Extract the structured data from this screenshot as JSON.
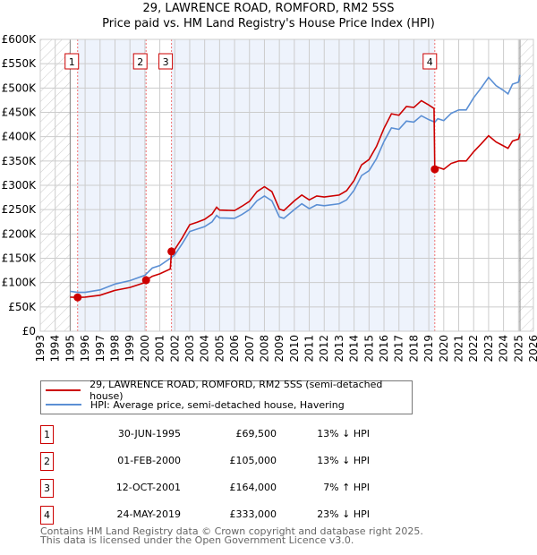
{
  "title": "29, LAWRENCE ROAD, ROMFORD, RM2 5SS",
  "subtitle": "Price paid vs. HM Land Registry's House Price Index (HPI)",
  "chart_data": {
    "type": "line",
    "xlim": [
      1993,
      2026
    ],
    "ylim": [
      0,
      600000
    ],
    "yticks": [
      "£0",
      "£50K",
      "£100K",
      "£150K",
      "£200K",
      "£250K",
      "£300K",
      "£350K",
      "£400K",
      "£450K",
      "£500K",
      "£550K",
      "£600K"
    ],
    "xticks": [
      "1993",
      "1994",
      "1995",
      "1996",
      "1997",
      "1998",
      "1999",
      "2000",
      "2001",
      "2002",
      "2003",
      "2004",
      "2005",
      "2006",
      "2007",
      "2008",
      "2009",
      "2010",
      "2011",
      "2012",
      "2013",
      "2014",
      "2015",
      "2016",
      "2017",
      "2018",
      "2019",
      "2020",
      "2021",
      "2022",
      "2023",
      "2024",
      "2025",
      "2026"
    ],
    "grid": true,
    "series": [
      {
        "name": "29, LAWRENCE ROAD, ROMFORD, RM2 5SS (semi-detached house)",
        "color": "#cc0000",
        "points": [
          [
            1995.0,
            70
          ],
          [
            1995.5,
            69.5
          ],
          [
            1996,
            70
          ],
          [
            1997,
            74
          ],
          [
            1998,
            84
          ],
          [
            1999,
            90
          ],
          [
            2000,
            100
          ],
          [
            2000.08,
            105
          ],
          [
            2000.5,
            113
          ],
          [
            2001,
            118
          ],
          [
            2001.7,
            128
          ],
          [
            2001.78,
            164
          ],
          [
            2002,
            168
          ],
          [
            2002.5,
            192
          ],
          [
            2003,
            219
          ],
          [
            2003.5,
            224
          ],
          [
            2004,
            230
          ],
          [
            2004.5,
            241
          ],
          [
            2004.8,
            255
          ],
          [
            2005,
            249
          ],
          [
            2006,
            248
          ],
          [
            2006.5,
            257
          ],
          [
            2007,
            267
          ],
          [
            2007.5,
            287
          ],
          [
            2008,
            297
          ],
          [
            2008.5,
            287
          ],
          [
            2009,
            251
          ],
          [
            2009.3,
            248
          ],
          [
            2010,
            268
          ],
          [
            2010.5,
            280
          ],
          [
            2011,
            270
          ],
          [
            2011.5,
            278
          ],
          [
            2012,
            276
          ],
          [
            2013,
            280
          ],
          [
            2013.5,
            289
          ],
          [
            2014,
            310
          ],
          [
            2014.5,
            342
          ],
          [
            2015,
            353
          ],
          [
            2015.5,
            380
          ],
          [
            2016,
            417
          ],
          [
            2016.5,
            447
          ],
          [
            2017,
            444
          ],
          [
            2017.5,
            462
          ],
          [
            2018,
            460
          ],
          [
            2018.5,
            474
          ],
          [
            2019,
            465
          ],
          [
            2019.35,
            458
          ],
          [
            2019.4,
            333
          ],
          [
            2019.6,
            337
          ],
          [
            2020,
            333
          ],
          [
            2020.5,
            345
          ],
          [
            2021,
            350
          ],
          [
            2021.5,
            350
          ],
          [
            2022,
            369
          ],
          [
            2022.5,
            385
          ],
          [
            2023,
            402
          ],
          [
            2023.5,
            389
          ],
          [
            2024,
            381
          ],
          [
            2024.3,
            376
          ],
          [
            2024.6,
            391
          ],
          [
            2025,
            395
          ],
          [
            2025.1,
            406
          ]
        ]
      },
      {
        "name": "HPI: Average price, semi-detached house, Havering",
        "color": "#5b8fd4",
        "points": [
          [
            1995.0,
            82
          ],
          [
            1995.5,
            80
          ],
          [
            1996,
            80
          ],
          [
            1997,
            85
          ],
          [
            1998,
            97
          ],
          [
            1999,
            104
          ],
          [
            2000,
            115
          ],
          [
            2000.5,
            130
          ],
          [
            2001,
            135
          ],
          [
            2001.8,
            152
          ],
          [
            2002,
            157
          ],
          [
            2002.5,
            180
          ],
          [
            2003,
            205
          ],
          [
            2003.5,
            210
          ],
          [
            2004,
            215
          ],
          [
            2004.5,
            225
          ],
          [
            2004.8,
            238
          ],
          [
            2005,
            233
          ],
          [
            2006,
            232
          ],
          [
            2006.5,
            240
          ],
          [
            2007,
            250
          ],
          [
            2007.5,
            268
          ],
          [
            2008,
            278
          ],
          [
            2008.5,
            268
          ],
          [
            2009,
            235
          ],
          [
            2009.3,
            232
          ],
          [
            2010,
            250
          ],
          [
            2010.5,
            262
          ],
          [
            2011,
            252
          ],
          [
            2011.5,
            260
          ],
          [
            2012,
            258
          ],
          [
            2013,
            262
          ],
          [
            2013.5,
            270
          ],
          [
            2014,
            290
          ],
          [
            2014.5,
            320
          ],
          [
            2015,
            330
          ],
          [
            2015.5,
            355
          ],
          [
            2016,
            390
          ],
          [
            2016.5,
            418
          ],
          [
            2017,
            415
          ],
          [
            2017.5,
            432
          ],
          [
            2018,
            430
          ],
          [
            2018.5,
            443
          ],
          [
            2019,
            435
          ],
          [
            2019.4,
            430
          ],
          [
            2019.6,
            437
          ],
          [
            2020,
            433
          ],
          [
            2020.5,
            448
          ],
          [
            2021,
            455
          ],
          [
            2021.5,
            455
          ],
          [
            2022,
            480
          ],
          [
            2022.5,
            500
          ],
          [
            2023,
            522
          ],
          [
            2023.5,
            505
          ],
          [
            2024,
            495
          ],
          [
            2024.3,
            488
          ],
          [
            2024.6,
            508
          ],
          [
            2025,
            512
          ],
          [
            2025.1,
            527
          ]
        ]
      }
    ],
    "sales": [
      {
        "label": "1",
        "year": 1995.5,
        "price": 69500,
        "date": "30-JUN-1995",
        "price_text": "£69,500",
        "hpi": "13% ↓ HPI"
      },
      {
        "label": "2",
        "year": 2000.08,
        "price": 105000,
        "date": "01-FEB-2000",
        "price_text": "£105,000",
        "hpi": "13% ↓ HPI"
      },
      {
        "label": "3",
        "year": 2001.78,
        "price": 164000,
        "date": "12-OCT-2001",
        "price_text": "£164,000",
        "hpi": "7% ↑ HPI"
      },
      {
        "label": "4",
        "year": 2019.4,
        "price": 333000,
        "date": "24-MAY-2019",
        "price_text": "£333,000",
        "hpi": "23% ↓ HPI"
      }
    ]
  },
  "footer": [
    "Contains HM Land Registry data © Crown copyright and database right 2025.",
    "This data is licensed under the Open Government Licence v3.0."
  ]
}
